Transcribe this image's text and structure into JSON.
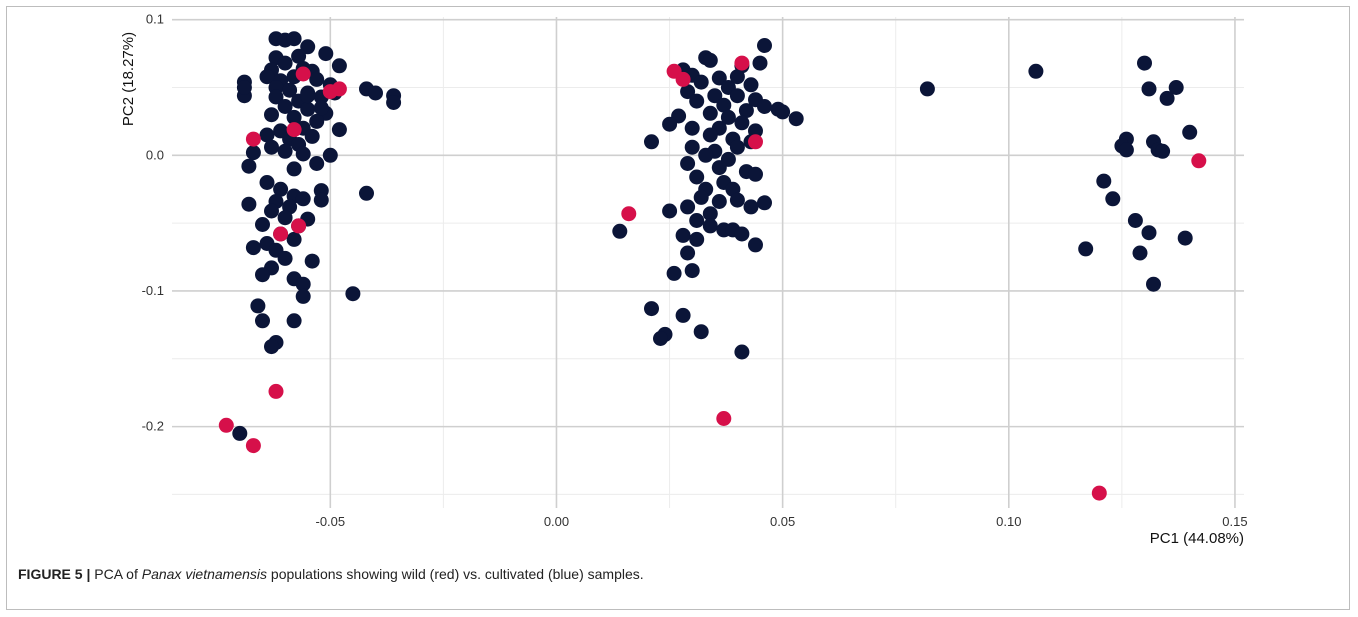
{
  "chart_data": {
    "type": "scatter",
    "title": "",
    "xlabel": "PC1 (44.08%)",
    "ylabel": "PC2 (18.27%)",
    "xlim": [
      -0.085,
      0.152
    ],
    "ylim": [
      -0.26,
      0.102
    ],
    "xticks": [
      -0.05,
      0.0,
      0.05,
      0.1,
      0.15
    ],
    "xtick_labels": [
      "-0.05",
      "0.00",
      "0.05",
      "0.10",
      "0.15"
    ],
    "yticks": [
      0.1,
      0.0,
      -0.1,
      -0.2
    ],
    "ytick_labels": [
      "0.1",
      "0.0",
      "-0.1",
      "-0.2"
    ],
    "grid": true,
    "legend": "none",
    "colors": {
      "wild": "#d6104a",
      "cultivated": "#0b1538"
    },
    "series": [
      {
        "key": "cultivated",
        "color": "#0b1538",
        "points": [
          [
            -0.062,
            0.086
          ],
          [
            -0.06,
            0.085
          ],
          [
            -0.058,
            0.086
          ],
          [
            -0.055,
            0.08
          ],
          [
            -0.051,
            0.075
          ],
          [
            -0.048,
            0.066
          ],
          [
            -0.062,
            0.072
          ],
          [
            -0.057,
            0.073
          ],
          [
            -0.06,
            0.068
          ],
          [
            -0.063,
            0.063
          ],
          [
            -0.056,
            0.064
          ],
          [
            -0.054,
            0.062
          ],
          [
            -0.058,
            0.058
          ],
          [
            -0.061,
            0.055
          ],
          [
            -0.064,
            0.058
          ],
          [
            -0.053,
            0.056
          ],
          [
            -0.05,
            0.052
          ],
          [
            -0.062,
            0.05
          ],
          [
            -0.059,
            0.048
          ],
          [
            -0.055,
            0.046
          ],
          [
            -0.052,
            0.043
          ],
          [
            -0.049,
            0.046
          ],
          [
            -0.057,
            0.04
          ],
          [
            -0.062,
            0.043
          ],
          [
            -0.06,
            0.036
          ],
          [
            -0.055,
            0.034
          ],
          [
            -0.051,
            0.031
          ],
          [
            -0.058,
            0.028
          ],
          [
            -0.063,
            0.03
          ],
          [
            -0.053,
            0.025
          ],
          [
            -0.056,
            0.02
          ],
          [
            -0.061,
            0.018
          ],
          [
            -0.048,
            0.019
          ],
          [
            -0.064,
            0.015
          ],
          [
            -0.059,
            0.012
          ],
          [
            -0.054,
            0.014
          ],
          [
            -0.057,
            0.008
          ],
          [
            -0.063,
            0.006
          ],
          [
            -0.06,
            0.003
          ],
          [
            -0.056,
            0.001
          ],
          [
            -0.05,
            0.0
          ],
          [
            -0.053,
            -0.006
          ],
          [
            -0.058,
            -0.01
          ],
          [
            -0.067,
            0.002
          ],
          [
            -0.068,
            -0.008
          ],
          [
            -0.069,
            0.054
          ],
          [
            -0.069,
            0.044
          ],
          [
            -0.069,
            0.05
          ],
          [
            -0.042,
            0.049
          ],
          [
            -0.04,
            0.046
          ],
          [
            -0.036,
            0.044
          ],
          [
            -0.036,
            0.039
          ],
          [
            -0.052,
            0.035
          ],
          [
            -0.055,
            0.044
          ],
          [
            -0.064,
            -0.02
          ],
          [
            -0.061,
            -0.025
          ],
          [
            -0.058,
            -0.03
          ],
          [
            -0.062,
            -0.034
          ],
          [
            -0.059,
            -0.038
          ],
          [
            -0.056,
            -0.032
          ],
          [
            -0.052,
            -0.026
          ],
          [
            -0.052,
            -0.033
          ],
          [
            -0.063,
            -0.041
          ],
          [
            -0.068,
            -0.036
          ],
          [
            -0.06,
            -0.046
          ],
          [
            -0.065,
            -0.051
          ],
          [
            -0.057,
            -0.052
          ],
          [
            -0.055,
            -0.047
          ],
          [
            -0.061,
            -0.058
          ],
          [
            -0.064,
            -0.065
          ],
          [
            -0.058,
            -0.062
          ],
          [
            -0.062,
            -0.07
          ],
          [
            -0.067,
            -0.068
          ],
          [
            -0.06,
            -0.076
          ],
          [
            -0.054,
            -0.078
          ],
          [
            -0.063,
            -0.083
          ],
          [
            -0.065,
            -0.088
          ],
          [
            -0.058,
            -0.091
          ],
          [
            -0.056,
            -0.095
          ],
          [
            -0.056,
            -0.104
          ],
          [
            -0.066,
            -0.111
          ],
          [
            -0.065,
            -0.122
          ],
          [
            -0.058,
            -0.122
          ],
          [
            -0.062,
            -0.138
          ],
          [
            -0.063,
            -0.141
          ],
          [
            -0.045,
            -0.102
          ],
          [
            -0.042,
            -0.028
          ],
          [
            -0.07,
            -0.205
          ],
          [
            0.033,
            0.072
          ],
          [
            0.034,
            0.07
          ],
          [
            0.028,
            0.063
          ],
          [
            0.046,
            0.081
          ],
          [
            0.045,
            0.068
          ],
          [
            0.041,
            0.066
          ],
          [
            0.03,
            0.059
          ],
          [
            0.036,
            0.057
          ],
          [
            0.04,
            0.058
          ],
          [
            0.043,
            0.052
          ],
          [
            0.032,
            0.054
          ],
          [
            0.038,
            0.05
          ],
          [
            0.029,
            0.047
          ],
          [
            0.035,
            0.044
          ],
          [
            0.04,
            0.044
          ],
          [
            0.044,
            0.041
          ],
          [
            0.031,
            0.04
          ],
          [
            0.037,
            0.037
          ],
          [
            0.046,
            0.036
          ],
          [
            0.049,
            0.034
          ],
          [
            0.05,
            0.032
          ],
          [
            0.042,
            0.033
          ],
          [
            0.034,
            0.031
          ],
          [
            0.038,
            0.028
          ],
          [
            0.053,
            0.027
          ],
          [
            0.027,
            0.029
          ],
          [
            0.025,
            0.023
          ],
          [
            0.03,
            0.02
          ],
          [
            0.036,
            0.02
          ],
          [
            0.041,
            0.024
          ],
          [
            0.044,
            0.018
          ],
          [
            0.034,
            0.015
          ],
          [
            0.039,
            0.012
          ],
          [
            0.043,
            0.01
          ],
          [
            0.021,
            0.01
          ],
          [
            0.03,
            0.006
          ],
          [
            0.035,
            0.003
          ],
          [
            0.04,
            0.006
          ],
          [
            0.033,
            0.0
          ],
          [
            0.038,
            -0.003
          ],
          [
            0.029,
            -0.006
          ],
          [
            0.036,
            -0.009
          ],
          [
            0.042,
            -0.012
          ],
          [
            0.031,
            -0.016
          ],
          [
            0.037,
            -0.02
          ],
          [
            0.033,
            -0.025
          ],
          [
            0.044,
            -0.014
          ],
          [
            0.039,
            -0.025
          ],
          [
            0.032,
            -0.031
          ],
          [
            0.036,
            -0.034
          ],
          [
            0.029,
            -0.038
          ],
          [
            0.04,
            -0.033
          ],
          [
            0.034,
            -0.043
          ],
          [
            0.025,
            -0.041
          ],
          [
            0.031,
            -0.048
          ],
          [
            0.034,
            -0.052
          ],
          [
            0.037,
            -0.055
          ],
          [
            0.028,
            -0.059
          ],
          [
            0.031,
            -0.062
          ],
          [
            0.039,
            -0.055
          ],
          [
            0.046,
            -0.035
          ],
          [
            0.043,
            -0.038
          ],
          [
            0.014,
            -0.056
          ],
          [
            0.041,
            -0.058
          ],
          [
            0.044,
            -0.066
          ],
          [
            0.029,
            -0.072
          ],
          [
            0.026,
            -0.087
          ],
          [
            0.03,
            -0.085
          ],
          [
            0.021,
            -0.113
          ],
          [
            0.028,
            -0.118
          ],
          [
            0.024,
            -0.132
          ],
          [
            0.023,
            -0.135
          ],
          [
            0.032,
            -0.13
          ],
          [
            0.041,
            -0.145
          ],
          [
            0.082,
            0.049
          ],
          [
            0.106,
            0.062
          ],
          [
            0.13,
            0.068
          ],
          [
            0.137,
            0.05
          ],
          [
            0.131,
            0.049
          ],
          [
            0.135,
            0.042
          ],
          [
            0.14,
            0.017
          ],
          [
            0.126,
            0.012
          ],
          [
            0.132,
            0.01
          ],
          [
            0.125,
            0.007
          ],
          [
            0.133,
            0.004
          ],
          [
            0.126,
            0.004
          ],
          [
            0.134,
            0.003
          ],
          [
            0.121,
            -0.019
          ],
          [
            0.123,
            -0.032
          ],
          [
            0.128,
            -0.048
          ],
          [
            0.131,
            -0.057
          ],
          [
            0.139,
            -0.061
          ],
          [
            0.117,
            -0.069
          ],
          [
            0.129,
            -0.072
          ],
          [
            0.132,
            -0.095
          ]
        ]
      },
      {
        "key": "wild",
        "color": "#d6104a",
        "points": [
          [
            -0.056,
            0.06
          ],
          [
            -0.05,
            0.047
          ],
          [
            -0.048,
            0.049
          ],
          [
            -0.058,
            0.019
          ],
          [
            -0.067,
            0.012
          ],
          [
            -0.061,
            -0.058
          ],
          [
            -0.057,
            -0.052
          ],
          [
            -0.062,
            -0.174
          ],
          [
            -0.073,
            -0.199
          ],
          [
            -0.067,
            -0.214
          ],
          [
            0.026,
            0.062
          ],
          [
            0.028,
            0.056
          ],
          [
            0.041,
            0.068
          ],
          [
            0.044,
            0.01
          ],
          [
            0.016,
            -0.043
          ],
          [
            0.037,
            -0.194
          ],
          [
            0.142,
            -0.004
          ],
          [
            0.12,
            -0.249
          ]
        ]
      }
    ]
  },
  "caption": {
    "label": "FIGURE 5 |",
    "text_before": " PCA of ",
    "species": "Panax vietnamensis",
    "text_after": " populations showing wild (red) vs. cultivated (blue) samples."
  }
}
